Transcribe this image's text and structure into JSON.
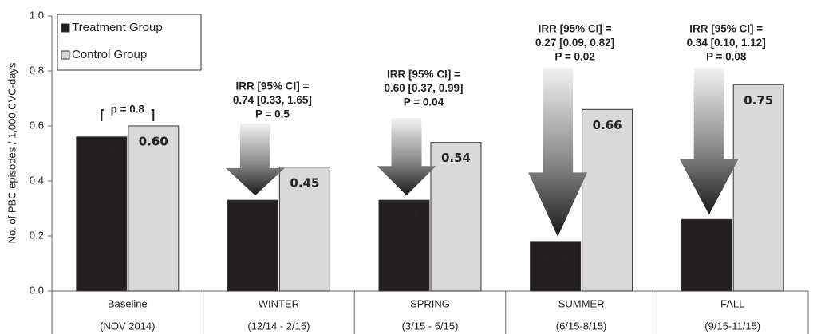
{
  "chart_data": {
    "type": "bar",
    "y_label": "No. of PBC episodes / 1,000 CVC-days",
    "categories": [
      "Baseline",
      "WINTER",
      "SPRING",
      "SUMMER",
      "FALL"
    ],
    "category_periods": [
      "(NOV 2014)",
      "(12/14 - 2/15)",
      "(3/15 - 5/15)",
      "(6/15-8/15)",
      "(9/15-11/15)"
    ],
    "ylim": [
      0,
      1
    ],
    "yticks": [
      {
        "value": 0,
        "label": "0.0"
      },
      {
        "value": 0.2,
        "label": "0.2"
      },
      {
        "value": 0.4,
        "label": "0.4"
      },
      {
        "value": 0.6,
        "label": "0.6"
      },
      {
        "value": 0.8,
        "label": "0.8"
      },
      {
        "value": 1,
        "label": "1.0"
      }
    ],
    "legend": "top-left",
    "series": [
      {
        "name": "Treatment Group",
        "color": "#231f20",
        "values": [
          0.56,
          0.33,
          0.33,
          0.18,
          0.26
        ],
        "value_labels": [
          "0.56",
          "0.33",
          "0.33",
          "0.18",
          "0.26"
        ]
      },
      {
        "name": "Control Group",
        "color": "#d9d9d9",
        "values": [
          0.6,
          0.45,
          0.54,
          0.66,
          0.75
        ],
        "value_labels": [
          "0.60",
          "0.45",
          "0.54",
          "0.66",
          "0.75"
        ]
      }
    ],
    "annotations": [
      [
        "p = 0.8"
      ],
      [
        "IRR [95% CI] =",
        "0.74 [0.33, 1.65]",
        "P = 0.5"
      ],
      [
        "IRR [95% CI] =",
        "0.60 [0.37, 0.99]",
        "P = 0.04"
      ],
      [
        "IRR [95% CI] =",
        "0.27 [0.09, 0.82]",
        "P = 0.02"
      ],
      [
        "IRR [95% CI] =",
        "0.34 [0.10, 1.12]",
        "P = 0.08"
      ]
    ]
  }
}
